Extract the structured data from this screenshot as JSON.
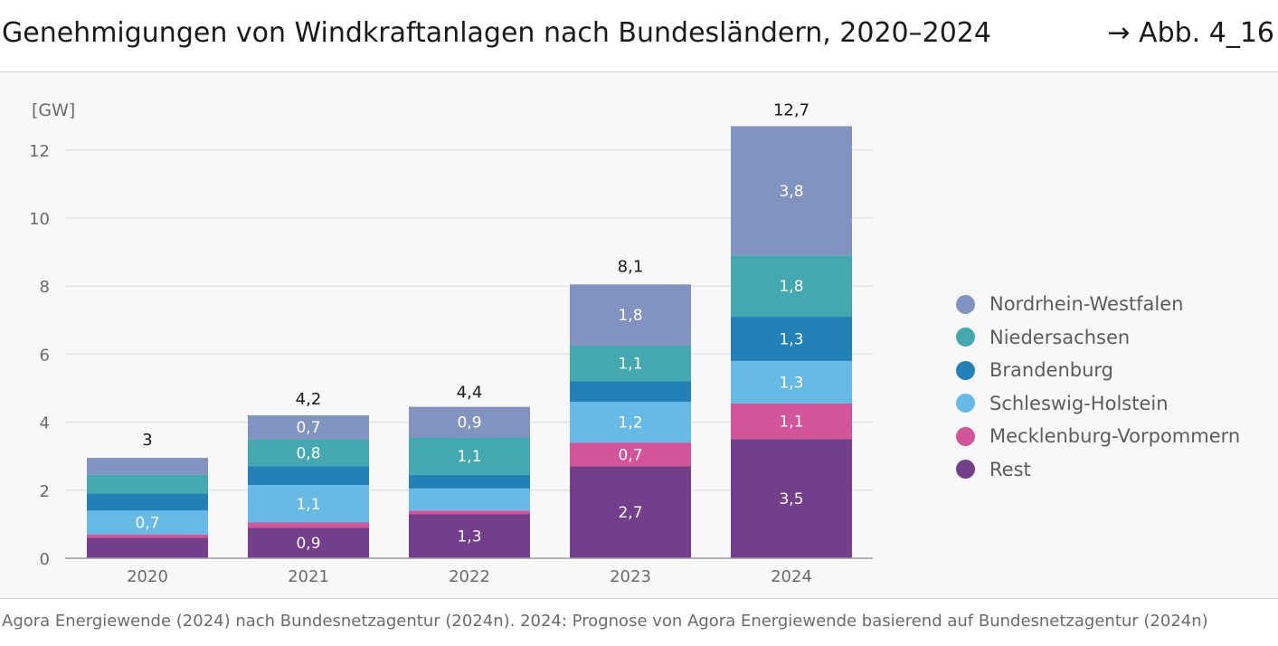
{
  "header": {
    "title": "Genehmigungen von Windkraftanlagen nach Bundesländern, 2020–2024",
    "figure_ref": "→ Abb. 4_16"
  },
  "source": "Agora Energiewende (2024) nach Bundesnetzagentur (2024n). 2024: Prognose von Agora Energiewende basierend auf Bundesnetzagentur (2024n)",
  "chart_data": {
    "type": "bar",
    "stacked": true,
    "title": "Genehmigungen von Windkraftanlagen nach Bundesländern, 2020–2024",
    "ylabel": "[GW]",
    "xlabel": "",
    "ylim": [
      0,
      12.7
    ],
    "yticks": [
      0,
      2,
      4,
      6,
      8,
      10,
      12
    ],
    "grid": true,
    "legend_position": "right",
    "categories": [
      "2020",
      "2021",
      "2022",
      "2023",
      "2024"
    ],
    "totals": [
      3,
      4.2,
      4.4,
      8.1,
      12.7
    ],
    "total_labels": [
      "3",
      "4,2",
      "4,4",
      "8,1",
      "12,7"
    ],
    "series": [
      {
        "name": "Rest",
        "color": "#733e8a",
        "values": [
          0.6,
          0.9,
          1.3,
          2.7,
          3.5
        ],
        "labels": [
          "",
          "0,9",
          "1,3",
          "2,7",
          "3,5"
        ]
      },
      {
        "name": "Mecklenburg-Vorpommern",
        "color": "#d4549a",
        "values": [
          0.1,
          0.15,
          0.1,
          0.7,
          1.05
        ],
        "labels": [
          "",
          "",
          "",
          "0,7",
          "1,1"
        ]
      },
      {
        "name": "Schleswig-Holstein",
        "color": "#67bae6",
        "values": [
          0.7,
          1.1,
          0.65,
          1.2,
          1.25
        ],
        "labels": [
          "0,7",
          "1,1",
          "",
          "1,2",
          "1,3"
        ]
      },
      {
        "name": "Brandenburg",
        "color": "#2282b8",
        "values": [
          0.5,
          0.55,
          0.4,
          0.6,
          1.3
        ],
        "labels": [
          "",
          "",
          "",
          "",
          "1,3"
        ]
      },
      {
        "name": "Niedersachsen",
        "color": "#44a8b0",
        "values": [
          0.55,
          0.8,
          1.1,
          1.05,
          1.8
        ],
        "labels": [
          "",
          "0,8",
          "1,1",
          "1,1",
          "1,8"
        ]
      },
      {
        "name": "Nordrhein-Westfalen",
        "color": "#8193be",
        "values": [
          0.5,
          0.7,
          0.9,
          1.8,
          3.8
        ],
        "labels": [
          "",
          "0,7",
          "0,9",
          "1,8",
          "3,8"
        ]
      }
    ]
  }
}
